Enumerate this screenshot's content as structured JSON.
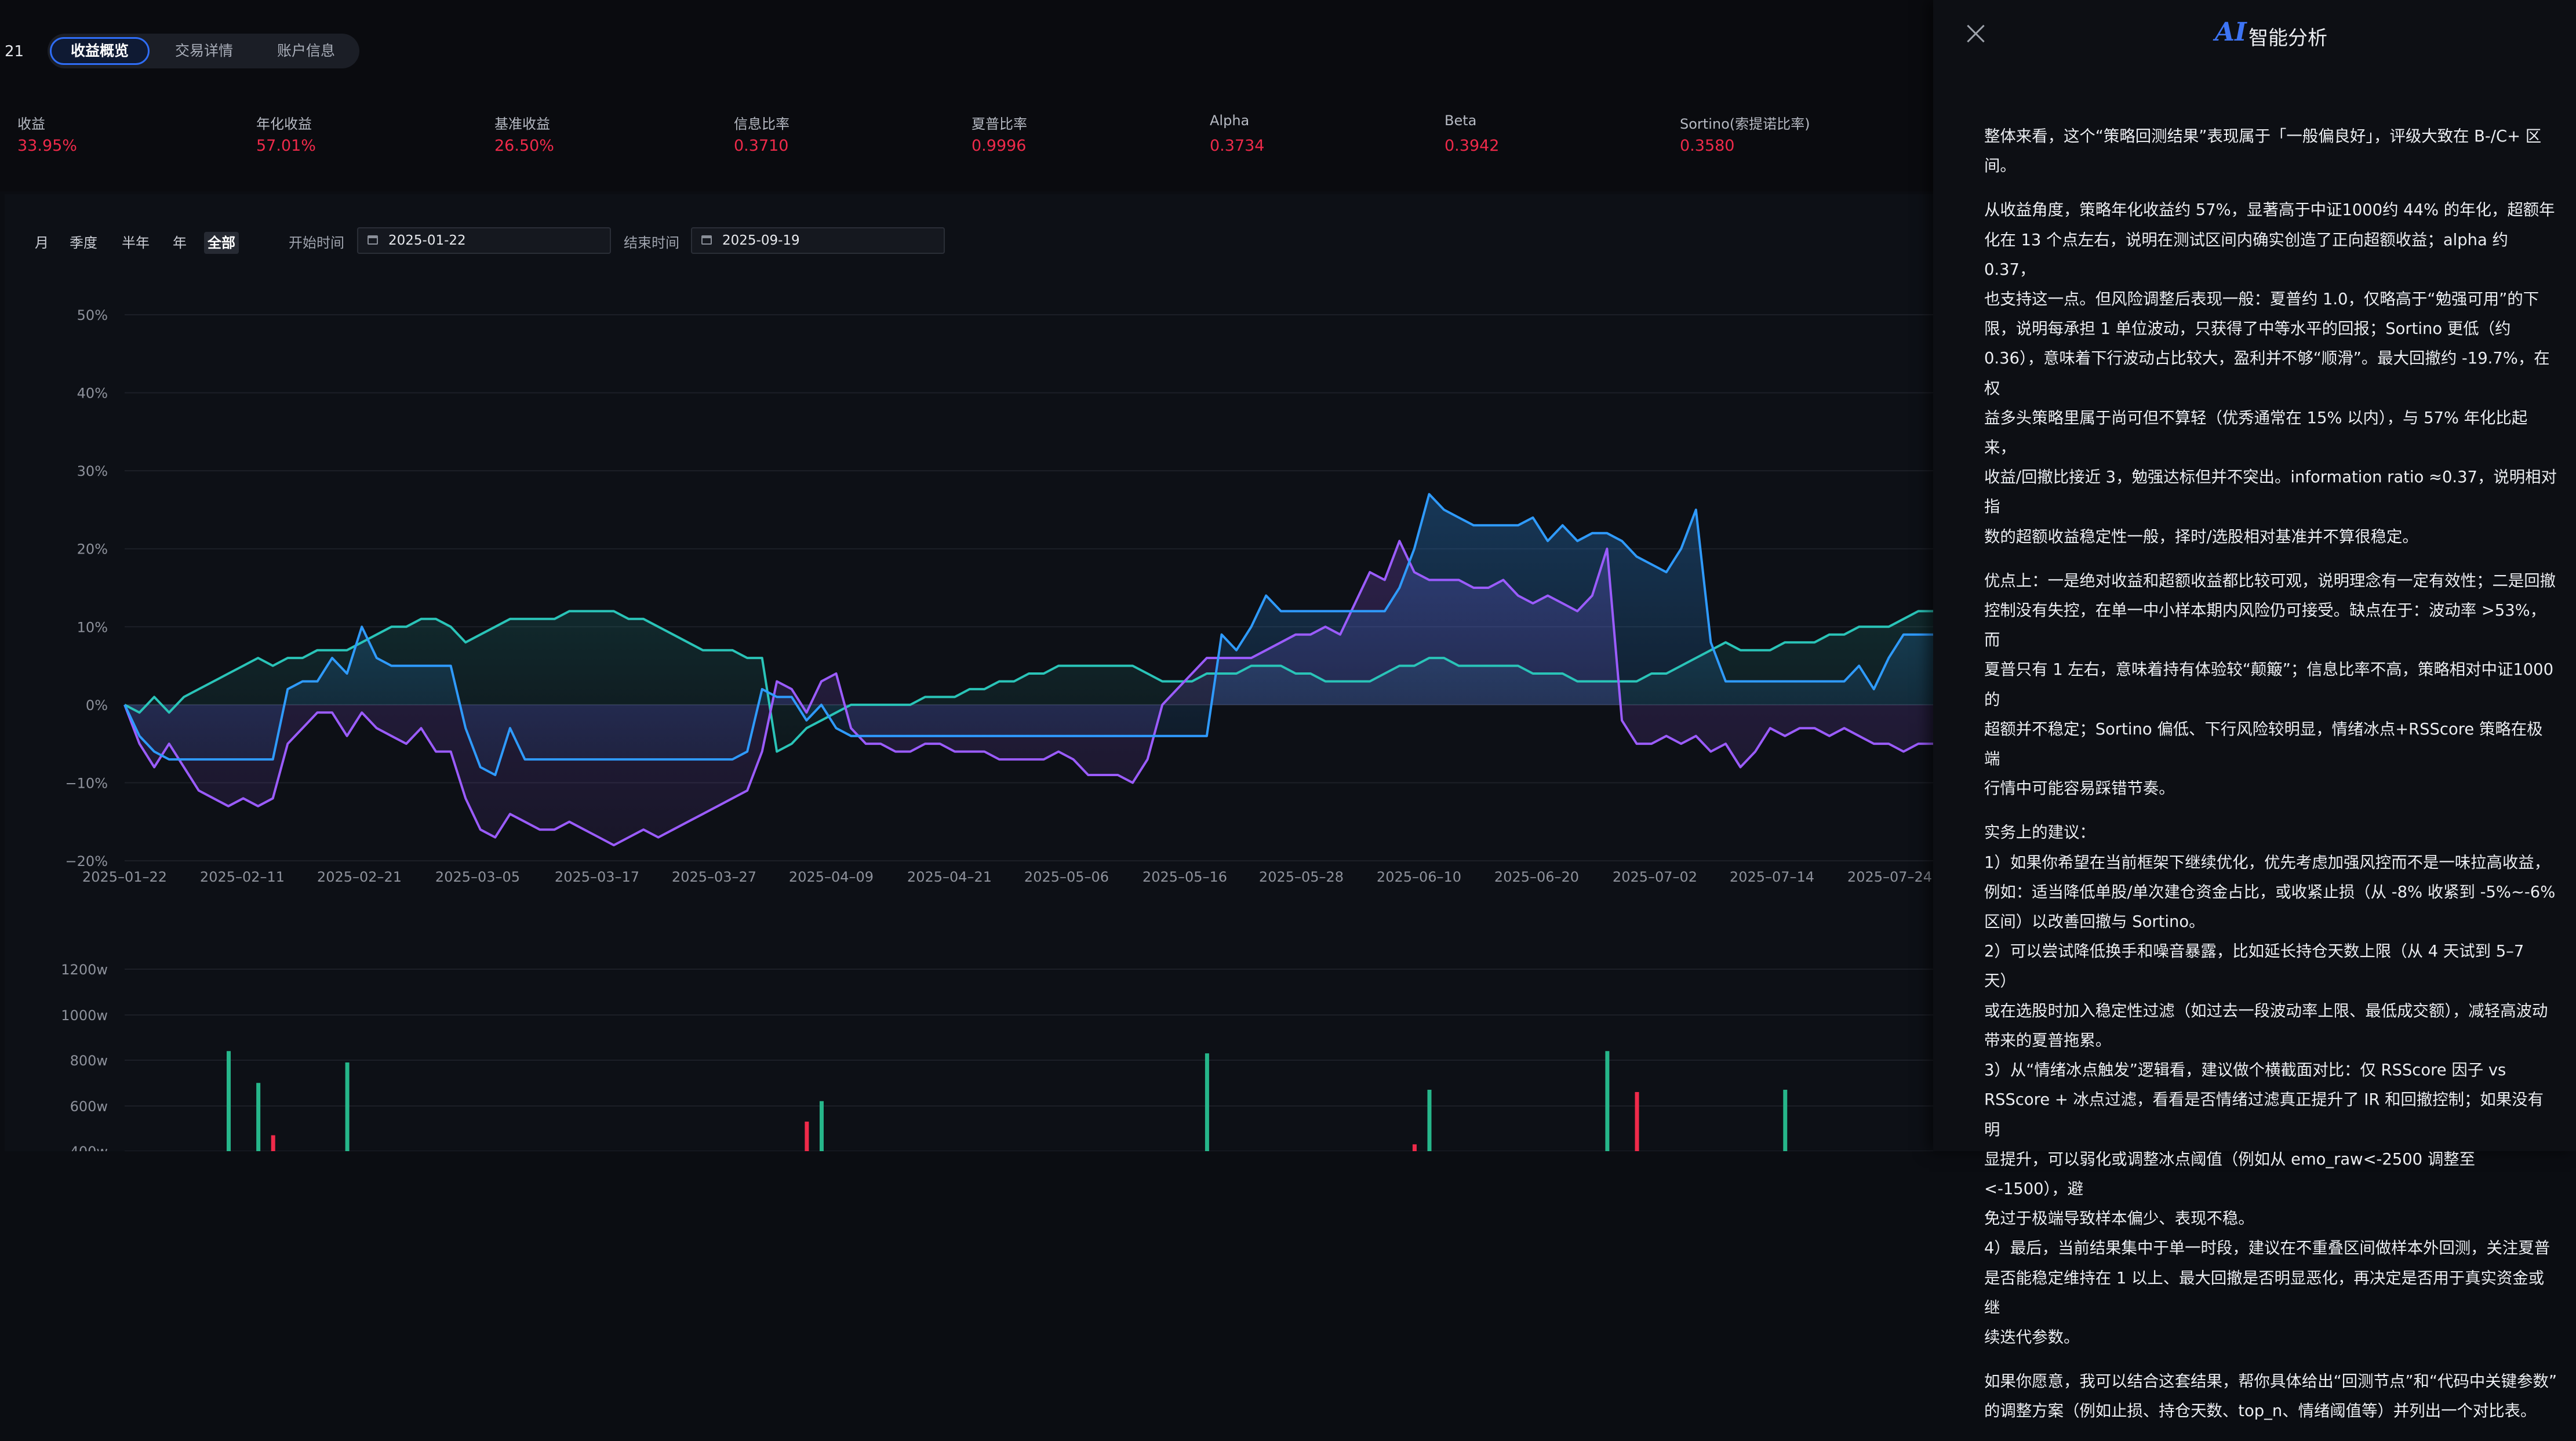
{
  "page_number": "21",
  "tabs": [
    "收益概览",
    "交易详情",
    "账户信息"
  ],
  "metrics": [
    {
      "label": "收益",
      "value": "33.95%"
    },
    {
      "label": "年化收益",
      "value": "57.01%"
    },
    {
      "label": "基准收益",
      "value": "26.50%"
    },
    {
      "label": "信息比率",
      "value": "0.3710"
    },
    {
      "label": "夏普比率",
      "value": "0.9996"
    },
    {
      "label": "Alpha",
      "value": "0.3734"
    },
    {
      "label": "Beta",
      "value": "0.3942"
    },
    {
      "label": "Sortino(索提诺比率)",
      "value": "0.3580"
    }
  ],
  "periods": [
    "月",
    "季度",
    "半年",
    "年",
    "全部"
  ],
  "active_period": "全部",
  "date_range": {
    "start_label": "开始时间",
    "start_value": "2025-01-22",
    "end_label": "结束时间",
    "end_value": "2025-09-19"
  },
  "colors": {
    "blue": "#2f9bff",
    "purple": "#9b5cff",
    "teal": "#2ac4b8",
    "green_bar": "#26b68a",
    "red_bar": "#ef2a4a",
    "accent": "#2f6df6"
  },
  "chart_data": [
    {
      "type": "line",
      "ylim": [
        -20,
        50
      ],
      "yticks": [
        "50%",
        "40%",
        "30%",
        "20%",
        "10%",
        "0%",
        "−10%",
        "−20%"
      ],
      "xticks": [
        "2025–01–22",
        "2025–02–11",
        "2025–02–21",
        "2025–03–05",
        "2025–03–17",
        "2025–03–27",
        "2025–04–09",
        "2025–04–21",
        "2025–05–06",
        "2025–05–16",
        "2025–05–28",
        "2025–06–10",
        "2025–06–20",
        "2025–07–02",
        "2025–07–14",
        "2025–07–24"
      ],
      "n_points": 123,
      "series": [
        {
          "color": "blue",
          "values": [
            0,
            -4,
            -6,
            -7,
            -7,
            -7,
            -7,
            -7,
            -7,
            -7,
            -7,
            2,
            3,
            3,
            6,
            4,
            10,
            6,
            5,
            5,
            5,
            5,
            5,
            -3,
            -8,
            -9,
            -3,
            -7,
            -7,
            -7,
            -7,
            -7,
            -7,
            -7,
            -7,
            -7,
            -7,
            -7,
            -7,
            -7,
            -7,
            -7,
            -6,
            2,
            1,
            1,
            -2,
            0,
            -3,
            -4,
            -4,
            -4,
            -4,
            -4,
            -4,
            -4,
            -4,
            -4,
            -4,
            -4,
            -4,
            -4,
            -4,
            -4,
            -4,
            -4,
            -4,
            -4,
            -4,
            -4,
            -4,
            -4,
            -4,
            -4,
            9,
            7,
            10,
            14,
            12,
            12,
            12,
            12,
            12,
            12,
            12,
            12,
            15,
            20,
            27,
            25,
            24,
            23,
            23,
            23,
            23,
            24,
            21,
            23,
            21,
            22,
            22,
            21,
            19,
            18,
            17,
            20,
            25,
            8,
            3,
            3,
            3,
            3,
            3,
            3,
            3,
            3,
            3,
            5,
            2,
            6,
            9,
            9,
            9,
            9,
            9,
            9,
            9,
            9,
            9,
            9,
            9,
            10,
            17,
            26,
            27
          ]
        },
        {
          "color": "purple",
          "values": [
            0,
            -5,
            -8,
            -5,
            -8,
            -11,
            -12,
            -13,
            -12,
            -13,
            -12,
            -5,
            -3,
            -1,
            -1,
            -4,
            -1,
            -3,
            -4,
            -5,
            -3,
            -6,
            -6,
            -12,
            -16,
            -17,
            -14,
            -15,
            -16,
            -16,
            -15,
            -16,
            -17,
            -18,
            -17,
            -16,
            -17,
            -16,
            -15,
            -14,
            -13,
            -12,
            -11,
            -6,
            3,
            2,
            -1,
            3,
            4,
            -3,
            -5,
            -5,
            -6,
            -6,
            -5,
            -5,
            -6,
            -6,
            -6,
            -7,
            -7,
            -7,
            -7,
            -6,
            -7,
            -9,
            -9,
            -9,
            -10,
            -7,
            0,
            2,
            4,
            6,
            6,
            6,
            6,
            7,
            8,
            9,
            9,
            10,
            9,
            13,
            17,
            16,
            21,
            17,
            16,
            16,
            16,
            15,
            15,
            16,
            14,
            13,
            14,
            13,
            12,
            14,
            20,
            -2,
            -5,
            -5,
            -4,
            -5,
            -4,
            -6,
            -5,
            -8,
            -6,
            -3,
            -4,
            -3,
            -3,
            -4,
            -3,
            -4,
            -5,
            -5,
            -6,
            -5,
            -5,
            -6,
            -6,
            -4,
            0,
            4,
            9
          ]
        },
        {
          "color": "teal",
          "values": [
            0,
            -1,
            1,
            -1,
            1,
            2,
            3,
            4,
            5,
            6,
            5,
            6,
            6,
            7,
            7,
            7,
            8,
            9,
            10,
            10,
            11,
            11,
            10,
            8,
            9,
            10,
            11,
            11,
            11,
            11,
            12,
            12,
            12,
            12,
            11,
            11,
            10,
            9,
            8,
            7,
            7,
            7,
            6,
            6,
            -6,
            -5,
            -3,
            -2,
            -1,
            0,
            0,
            0,
            0,
            0,
            1,
            1,
            1,
            2,
            2,
            3,
            3,
            4,
            4,
            5,
            5,
            5,
            5,
            5,
            5,
            4,
            3,
            3,
            3,
            4,
            4,
            4,
            5,
            5,
            5,
            4,
            4,
            3,
            3,
            3,
            3,
            4,
            5,
            5,
            6,
            6,
            5,
            5,
            5,
            5,
            5,
            4,
            4,
            4,
            3,
            3,
            3,
            3,
            3,
            4,
            4,
            5,
            6,
            7,
            8,
            7,
            7,
            7,
            8,
            8,
            8,
            9,
            9,
            10,
            10,
            10,
            11,
            12,
            12,
            13,
            13,
            14,
            14,
            15
          ]
        }
      ]
    },
    {
      "type": "bar",
      "yticks": [
        "1200w",
        "1000w",
        "800w",
        "600w",
        "400w"
      ],
      "ylim": [
        400,
        1300
      ],
      "bars": [
        {
          "x_index": 7,
          "value": 840,
          "color": "green"
        },
        {
          "x_index": 9,
          "value": 700,
          "color": "green"
        },
        {
          "x_index": 10,
          "value": 470,
          "color": "red"
        },
        {
          "x_index": 15,
          "value": 790,
          "color": "green"
        },
        {
          "x_index": 46,
          "value": 530,
          "color": "red"
        },
        {
          "x_index": 47,
          "value": 620,
          "color": "green"
        },
        {
          "x_index": 73,
          "value": 830,
          "color": "green"
        },
        {
          "x_index": 87,
          "value": 430,
          "color": "red"
        },
        {
          "x_index": 88,
          "value": 670,
          "color": "green"
        },
        {
          "x_index": 100,
          "value": 840,
          "color": "green"
        },
        {
          "x_index": 102,
          "value": 660,
          "color": "red"
        },
        {
          "x_index": 112,
          "value": 670,
          "color": "green"
        }
      ]
    }
  ],
  "ai_panel": {
    "badge": "AI",
    "title": "智能分析",
    "paragraphs": [
      [
        "整体来看，这个“策略回测结果”表现属于「一般偏良好」，评级大致在 B-/C+ 区",
        "间。"
      ],
      [
        "从收益角度，策略年化收益约 57%，显著高于中证1000约 44% 的年化，超额年",
        "化在 13 个点左右，说明在测试区间内确实创造了正向超额收益；alpha 约 0.37，",
        "也支持这一点。但风险调整后表现一般：夏普约 1.0，仅略高于“勉强可用”的下",
        "限，说明每承担 1 单位波动，只获得了中等水平的回报；Sortino 更低（约",
        "0.36），意味着下行波动占比较大，盈利并不够“顺滑”。最大回撤约 -19.7%，在权",
        "益多头策略里属于尚可但不算轻（优秀通常在 15% 以内），与 57% 年化比起来，",
        "收益/回撤比接近 3，勉强达标但并不突出。information ratio ≈0.37，说明相对指",
        "数的超额收益稳定性一般，择时/选股相对基准并不算很稳定。"
      ],
      [
        "优点上：一是绝对收益和超额收益都比较可观，说明理念有一定有效性；二是回撤",
        "控制没有失控，在单一中小样本期内风险仍可接受。缺点在于：波动率 >53%，而",
        "夏普只有 1 左右，意味着持有体验较“颠簸”；信息比率不高，策略相对中证1000的",
        "超额并不稳定；Sortino 偏低、下行风险较明显，情绪冰点+RSScore 策略在极端",
        "行情中可能容易踩错节奏。"
      ],
      [
        "实务上的建议：",
        "1）如果你希望在当前框架下继续优化，优先考虑加强风控而不是一味拉高收益，",
        "例如：适当降低单股/单次建仓资金占比，或收紧止损（从 -8% 收紧到 -5%~-6%",
        "区间）以改善回撤与 Sortino。",
        "2）可以尝试降低换手和噪音暴露，比如延长持仓天数上限（从 4 天试到 5–7 天）",
        "或在选股时加入稳定性过滤（如过去一段波动率上限、最低成交额），减轻高波动",
        "带来的夏普拖累。",
        "3）从“情绪冰点触发”逻辑看，建议做个横截面对比：仅 RSScore 因子 vs",
        "RSScore + 冰点过滤，看看是否情绪过滤真正提升了 IR 和回撤控制；如果没有明",
        "显提升，可以弱化或调整冰点阈值（例如从 emo_raw<-2500 调整至<-1500），避",
        "免过于极端导致样本偏少、表现不稳。",
        "4）最后，当前结果集中于单一时段，建议在不重叠区间做样本外回测，关注夏普",
        "是否能稳定维持在 1 以上、最大回撤是否明显恶化，再决定是否用于真实资金或继",
        "续迭代参数。"
      ],
      [
        "如果你愿意，我可以结合这套结果，帮你具体给出“回测节点”和“代码中关键参数”",
        "的调整方案（例如止损、持仓天数、top_n、情绪阈值等）并列出一个对比表。"
      ]
    ]
  }
}
